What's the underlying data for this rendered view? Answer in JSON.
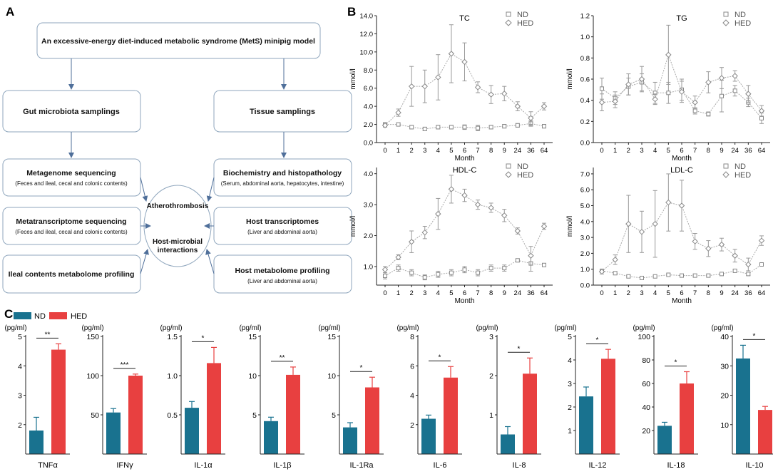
{
  "panel_labels": {
    "a": "A",
    "b": "B",
    "c": "C"
  },
  "flowchart": {
    "model": "An excessive-energy diet-induced metabolic syndrome (MetS) minipig model",
    "gut": "Gut microbiota samplings",
    "tissue": "Tissue samplings",
    "metagenome": {
      "title": "Metagenome sequencing",
      "sub": "(Feces and ileal, cecal and colonic contents)"
    },
    "metatranscriptome": {
      "title": "Metatranscriptome sequencing",
      "sub": "(Feces and ileal, cecal and colonic contents)"
    },
    "ileal": {
      "title": "Ileal contents metabolome profiling"
    },
    "biochem": {
      "title": "Biochemistry and histopathology",
      "sub": "(Serum, abdominal aorta, hepatocytes, intestine)"
    },
    "transcriptome": {
      "title": "Host transcriptomes",
      "sub": "(Liver and abdominal aorta)"
    },
    "metabolome": {
      "title": "Host metabolome profiling",
      "sub": "(Liver and abdominal aorta)"
    },
    "center_top": "Atherothrombosis",
    "center_bottom_1": "Host-microbial",
    "center_bottom_2": "interactions"
  },
  "chart_data": [
    {
      "type": "line",
      "title": "TC",
      "ylabel": "mmol/l",
      "xlabel": "Month",
      "ylim": [
        0,
        14
      ],
      "yticks": [
        "0.0",
        "2.0",
        "4.0",
        "6.0",
        "8.0",
        "10.0",
        "12.0",
        "14.0"
      ],
      "x": [
        "0",
        "1",
        "2",
        "3",
        "4",
        "5",
        "6",
        "7",
        "8",
        "9",
        "24",
        "36",
        "64"
      ],
      "legend": [
        "ND",
        "HED"
      ],
      "series": [
        {
          "name": "ND",
          "values": [
            2.0,
            2.0,
            1.7,
            1.5,
            1.7,
            1.7,
            1.7,
            1.6,
            1.7,
            1.8,
            1.9,
            2.1,
            1.8
          ],
          "err": [
            0.2,
            0.15,
            0.2,
            0.2,
            0.2,
            0.2,
            0.25,
            0.3,
            0.2,
            0.2,
            0.2,
            0.3,
            0.2
          ]
        },
        {
          "name": "HED",
          "values": [
            1.9,
            3.3,
            6.2,
            6.2,
            7.2,
            9.8,
            8.9,
            6.1,
            5.3,
            5.4,
            4.0,
            2.7,
            4.0
          ],
          "err": [
            0.2,
            0.4,
            2.2,
            1.8,
            2.5,
            3.2,
            2.1,
            0.6,
            1.0,
            0.8,
            0.5,
            0.7,
            0.4
          ]
        }
      ]
    },
    {
      "type": "line",
      "title": "TG",
      "ylabel": "mmol/l",
      "xlabel": "Month",
      "ylim": [
        0,
        1.2
      ],
      "yticks": [
        "0.0",
        "0.2",
        "0.4",
        "0.6",
        "0.8",
        "1.0",
        "1.2"
      ],
      "x": [
        "0",
        "1",
        "2",
        "3",
        "4",
        "5",
        "6",
        "7",
        "8",
        "9",
        "24",
        "36",
        "64"
      ],
      "legend": [
        "ND",
        "HED"
      ],
      "series": [
        {
          "name": "ND",
          "values": [
            0.51,
            0.42,
            0.53,
            0.57,
            0.47,
            0.47,
            0.5,
            0.3,
            0.27,
            0.44,
            0.49,
            0.38,
            0.23
          ],
          "err": [
            0.1,
            0.06,
            0.08,
            0.08,
            0.1,
            0.1,
            0.1,
            0.03,
            0.02,
            0.15,
            0.05,
            0.04,
            0.05
          ]
        },
        {
          "name": "HED",
          "values": [
            0.38,
            0.39,
            0.55,
            0.6,
            0.41,
            0.83,
            0.48,
            0.38,
            0.57,
            0.61,
            0.63,
            0.46,
            0.3
          ],
          "err": [
            0.08,
            0.06,
            0.1,
            0.12,
            0.05,
            0.28,
            0.1,
            0.06,
            0.1,
            0.1,
            0.05,
            0.08,
            0.05
          ]
        }
      ]
    },
    {
      "type": "line",
      "title": "HDL-C",
      "ylabel": "mmol/l",
      "xlabel": "Month",
      "ylim": [
        0.4,
        4.2
      ],
      "yticks": [
        "1.0",
        "2.0",
        "3.0",
        "4.0"
      ],
      "x": [
        "0",
        "1",
        "2",
        "3",
        "4",
        "5",
        "6",
        "7",
        "8",
        "9",
        "24",
        "36",
        "64"
      ],
      "legend": [
        "ND",
        "HED"
      ],
      "series": [
        {
          "name": "ND",
          "values": [
            0.7,
            0.95,
            0.8,
            0.65,
            0.75,
            0.8,
            0.9,
            0.8,
            0.95,
            0.95,
            1.2,
            1.1,
            1.05
          ],
          "err": [
            0.1,
            0.1,
            0.1,
            0.08,
            0.1,
            0.1,
            0.1,
            0.1,
            0.1,
            0.1,
            0.05,
            0.25,
            0.05
          ]
        },
        {
          "name": "HED",
          "values": [
            0.9,
            1.3,
            1.8,
            2.1,
            2.7,
            3.5,
            3.3,
            3.0,
            2.9,
            2.65,
            2.15,
            1.35,
            2.3
          ],
          "err": [
            0.1,
            0.08,
            0.35,
            0.2,
            0.5,
            0.45,
            0.2,
            0.15,
            0.15,
            0.2,
            0.1,
            0.3,
            0.1
          ]
        }
      ]
    },
    {
      "type": "line",
      "title": "LDL-C",
      "ylabel": "mmol/l",
      "xlabel": "Month",
      "ylim": [
        0,
        7.4
      ],
      "yticks": [
        "0.0",
        "1.0",
        "2.0",
        "3.0",
        "4.0",
        "5.0",
        "6.0",
        "7.0"
      ],
      "x": [
        "0",
        "1",
        "2",
        "3",
        "4",
        "5",
        "6",
        "7",
        "8",
        "9",
        "24",
        "36",
        "64"
      ],
      "legend": [
        "ND",
        "HED"
      ],
      "series": [
        {
          "name": "ND",
          "values": [
            0.9,
            0.75,
            0.55,
            0.45,
            0.55,
            0.65,
            0.6,
            0.6,
            0.6,
            0.7,
            0.9,
            0.7,
            1.3
          ],
          "err": [
            0.1,
            0.08,
            0.05,
            0.05,
            0.05,
            0.05,
            0.05,
            0.05,
            0.05,
            0.05,
            0.05,
            0.1,
            0.1
          ]
        },
        {
          "name": "HED",
          "values": [
            0.85,
            1.6,
            3.85,
            3.35,
            3.85,
            5.2,
            5.0,
            2.75,
            2.3,
            2.55,
            1.85,
            1.3,
            2.8
          ],
          "err": [
            0.15,
            0.3,
            1.8,
            1.3,
            2.1,
            1.8,
            1.6,
            0.5,
            0.5,
            0.4,
            0.4,
            0.4,
            0.3
          ]
        }
      ]
    },
    {
      "type": "bar",
      "unit": "(pg/ml)",
      "xlabel": "TNFα",
      "ylim": [
        1,
        5
      ],
      "yticks": [
        {
          "v": 2,
          "t": "2"
        },
        {
          "v": 3,
          "t": "3"
        },
        {
          "v": 4,
          "t": "4"
        },
        {
          "v": 5,
          "t": "5"
        }
      ],
      "series": [
        {
          "name": "ND",
          "values": [
            1.8
          ],
          "err": [
            0.45
          ]
        },
        {
          "name": "HED",
          "values": [
            4.55
          ],
          "err": [
            0.2
          ]
        }
      ],
      "sig": "**"
    },
    {
      "type": "bar",
      "unit": "(pg/ml)",
      "xlabel": "IFNγ",
      "ylim": [
        0,
        150
      ],
      "yticks": [
        {
          "v": 50,
          "t": "50"
        },
        {
          "v": 100,
          "t": "100"
        },
        {
          "v": 150,
          "t": "150"
        }
      ],
      "series": [
        {
          "name": "ND",
          "values": [
            53
          ],
          "err": [
            5
          ]
        },
        {
          "name": "HED",
          "values": [
            100
          ],
          "err": [
            2
          ]
        }
      ],
      "sig": "***"
    },
    {
      "type": "bar",
      "unit": "(pg/ml)",
      "xlabel": "IL-1α",
      "ylim": [
        0,
        1.5
      ],
      "yticks": [
        {
          "v": 0.5,
          "t": "0.5"
        },
        {
          "v": 1.0,
          "t": "1.0"
        },
        {
          "v": 1.5,
          "t": "1.5"
        }
      ],
      "series": [
        {
          "name": "ND",
          "values": [
            0.59
          ],
          "err": [
            0.08
          ]
        },
        {
          "name": "HED",
          "values": [
            1.16
          ],
          "err": [
            0.2
          ]
        }
      ],
      "sig": "*"
    },
    {
      "type": "bar",
      "unit": "(pg/ml)",
      "xlabel": "IL-1β",
      "ylim": [
        0,
        15
      ],
      "yticks": [
        {
          "v": 5,
          "t": "5"
        },
        {
          "v": 10,
          "t": "10"
        },
        {
          "v": 15,
          "t": "15"
        }
      ],
      "series": [
        {
          "name": "ND",
          "values": [
            4.2
          ],
          "err": [
            0.5
          ]
        },
        {
          "name": "HED",
          "values": [
            10.1
          ],
          "err": [
            1.0
          ]
        }
      ],
      "sig": "**"
    },
    {
      "type": "bar",
      "unit": "(pg/ml)",
      "xlabel": "IL-1Ra",
      "ylim": [
        0,
        15
      ],
      "yticks": [
        {
          "v": 5,
          "t": "5"
        },
        {
          "v": 10,
          "t": "10"
        },
        {
          "v": 15,
          "t": "15"
        }
      ],
      "series": [
        {
          "name": "ND",
          "values": [
            3.4
          ],
          "err": [
            0.6
          ]
        },
        {
          "name": "HED",
          "values": [
            8.5
          ],
          "err": [
            1.3
          ]
        }
      ],
      "sig": "*"
    },
    {
      "type": "bar",
      "unit": "(pg/ml)",
      "xlabel": "IL-6",
      "ylim": [
        0,
        8
      ],
      "yticks": [
        {
          "v": 2,
          "t": "2"
        },
        {
          "v": 4,
          "t": "4"
        },
        {
          "v": 6,
          "t": "6"
        },
        {
          "v": 8,
          "t": "8"
        }
      ],
      "series": [
        {
          "name": "ND",
          "values": [
            2.4
          ],
          "err": [
            0.25
          ]
        },
        {
          "name": "HED",
          "values": [
            5.2
          ],
          "err": [
            0.75
          ]
        }
      ],
      "sig": "*"
    },
    {
      "type": "bar",
      "unit": "(pg/ml)",
      "xlabel": "IL-8",
      "ylim": [
        0,
        3
      ],
      "yticks": [
        {
          "v": 1,
          "t": "1"
        },
        {
          "v": 2,
          "t": "2"
        },
        {
          "v": 3,
          "t": "3"
        }
      ],
      "series": [
        {
          "name": "ND",
          "values": [
            0.5
          ],
          "err": [
            0.2
          ]
        },
        {
          "name": "HED",
          "values": [
            2.05
          ],
          "err": [
            0.4
          ]
        }
      ],
      "sig": "*"
    },
    {
      "type": "bar",
      "unit": "(pg/ml)",
      "xlabel": "IL-12",
      "ylim": [
        0,
        5
      ],
      "yticks": [
        {
          "v": 1,
          "t": "1"
        },
        {
          "v": 2,
          "t": "2"
        },
        {
          "v": 3,
          "t": "3"
        },
        {
          "v": 4,
          "t": "4"
        },
        {
          "v": 5,
          "t": "5"
        }
      ],
      "series": [
        {
          "name": "ND",
          "values": [
            2.45
          ],
          "err": [
            0.4
          ]
        },
        {
          "name": "HED",
          "values": [
            4.05
          ],
          "err": [
            0.4
          ]
        }
      ],
      "sig": "*"
    },
    {
      "type": "bar",
      "unit": "(pg/ml)",
      "xlabel": "IL-18",
      "ylim": [
        0,
        100
      ],
      "yticks": [
        {
          "v": 20,
          "t": "20"
        },
        {
          "v": 40,
          "t": "40"
        },
        {
          "v": 60,
          "t": "60"
        },
        {
          "v": 80,
          "t": "80"
        },
        {
          "v": 100,
          "t": "100"
        }
      ],
      "series": [
        {
          "name": "ND",
          "values": [
            24
          ],
          "err": [
            3
          ]
        },
        {
          "name": "HED",
          "values": [
            60
          ],
          "err": [
            10
          ]
        }
      ],
      "sig": "*"
    },
    {
      "type": "bar",
      "unit": "(pg/ml)",
      "xlabel": "IL-10",
      "ylim": [
        0,
        40
      ],
      "yticks": [
        {
          "v": 10,
          "t": "10"
        },
        {
          "v": 20,
          "t": "20"
        },
        {
          "v": 30,
          "t": "30"
        },
        {
          "v": 40,
          "t": "40"
        }
      ],
      "series": [
        {
          "name": "ND",
          "values": [
            32.5
          ],
          "err": [
            4.5
          ]
        },
        {
          "name": "HED",
          "values": [
            15
          ],
          "err": [
            1.2
          ]
        }
      ],
      "sig": "*"
    }
  ],
  "bar_legend": {
    "nd": "ND",
    "hed": "HED"
  },
  "colors": {
    "nd": "#19728f",
    "hed": "#e84040",
    "line": "#999999",
    "box": "#8fa6bd",
    "arrow": "#4f6f9a"
  }
}
